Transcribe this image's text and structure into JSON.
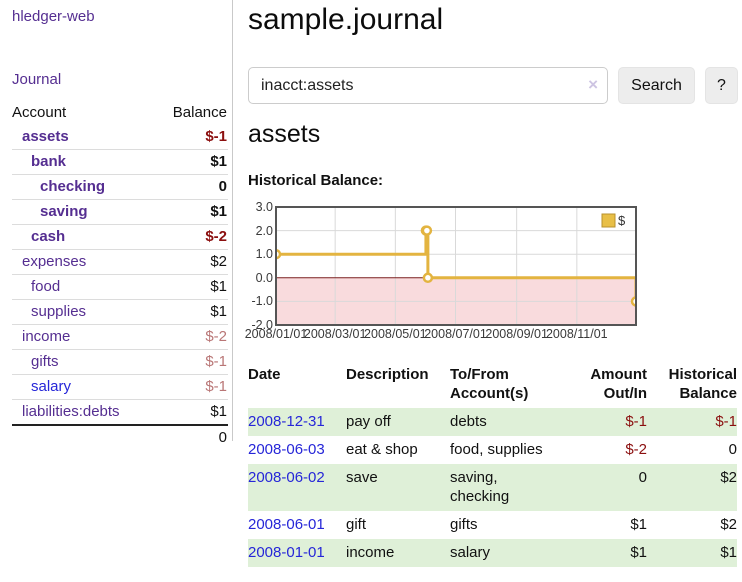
{
  "colors": {
    "link_purple": "#552e91",
    "link_blue": "#2626d8",
    "negative_strong": "#8b0f0f",
    "negative_soft": "#b97676",
    "row_stripe_green": "#dff0d8",
    "chart_line_gold": "#e3b440",
    "chart_negative_bg": "#f9dbdd",
    "chart_zero_line": "#7a1f1f"
  },
  "sidebar": {
    "brand": "hledger-web",
    "journal_link": "Journal",
    "accounts_table": {
      "col_account": "Account",
      "col_balance": "Balance",
      "rows": [
        {
          "name": "assets",
          "level": 0,
          "bold": true,
          "balance": "$-1",
          "neg": "strong"
        },
        {
          "name": "bank",
          "level": 1,
          "bold": true,
          "balance": "$1"
        },
        {
          "name": "checking",
          "level": 2,
          "bold": true,
          "balance": "0"
        },
        {
          "name": "saving",
          "level": 2,
          "bold": true,
          "balance": "$1"
        },
        {
          "name": "cash",
          "level": 1,
          "bold": true,
          "balance": "$-2",
          "neg": "strong"
        },
        {
          "name": "expenses",
          "level": 0,
          "bold": false,
          "balance": "$2"
        },
        {
          "name": "food",
          "level": 1,
          "bold": false,
          "balance": "$1"
        },
        {
          "name": "supplies",
          "level": 1,
          "bold": false,
          "balance": "$1"
        },
        {
          "name": "income",
          "level": 0,
          "bold": false,
          "balance": "$-2",
          "neg": "soft"
        },
        {
          "name": "gifts",
          "level": 1,
          "bold": false,
          "balance": "$-1",
          "neg": "soft"
        },
        {
          "name": "salary",
          "level": 1,
          "bold": false,
          "balance": "$-1",
          "neg": "soft",
          "blue": true
        },
        {
          "name": "liabilities:debts",
          "level": 0,
          "bold": false,
          "balance": "$1"
        }
      ],
      "total": "0"
    }
  },
  "header": {
    "title": "sample.journal"
  },
  "search": {
    "query": "inacct:assets",
    "clear_icon": "×",
    "search_button": "Search",
    "help_button": "?"
  },
  "register": {
    "account_title": "assets",
    "chart_label": "Historical Balance:",
    "table": {
      "headers": {
        "date": "Date",
        "sort_arrow": "∧",
        "description": "Description",
        "tofrom_l1": "To/From",
        "tofrom_l2": "Account(s)",
        "amount_l1": "Amount",
        "amount_l2": "Out/In",
        "hist_l1": "Historical",
        "hist_l2": "Balance"
      },
      "rows": [
        {
          "date": "2008-12-31",
          "description": "pay off",
          "tofrom": "debts",
          "amount": "$-1",
          "amount_neg": true,
          "hist": "$-1",
          "hist_neg": true
        },
        {
          "date": "2008-06-03",
          "description": "eat & shop",
          "tofrom": "food, supplies",
          "amount": "$-2",
          "amount_neg": true,
          "hist": "0",
          "hist_neg": false
        },
        {
          "date": "2008-06-02",
          "description": "save",
          "tofrom": "saving, checking",
          "amount": "0",
          "amount_neg": false,
          "hist": "$2",
          "hist_neg": false
        },
        {
          "date": "2008-06-01",
          "description": "gift",
          "tofrom": "gifts",
          "amount": "$1",
          "amount_neg": false,
          "hist": "$2",
          "hist_neg": false
        },
        {
          "date": "2008-01-01",
          "description": "income",
          "tofrom": "salary",
          "amount": "$1",
          "amount_neg": false,
          "hist": "$1",
          "hist_neg": false
        }
      ]
    }
  },
  "chart_data": {
    "type": "line",
    "title": "Historical Balance",
    "step": true,
    "series": [
      {
        "name": "$",
        "color": "#e3b440",
        "points": [
          {
            "date": "2008/01/01",
            "value": 1
          },
          {
            "date": "2008/06/01",
            "value": 2
          },
          {
            "date": "2008/06/02",
            "value": 2
          },
          {
            "date": "2008/06/03",
            "value": 0
          },
          {
            "date": "2008/12/31",
            "value": -1
          }
        ]
      }
    ],
    "ylim": [
      -2,
      3
    ],
    "y_ticks": [
      "3.0",
      "2.0",
      "1.0",
      "0.0",
      "-1.0",
      "-2.0"
    ],
    "x_range": [
      "2008/01/01",
      "2008/12/31"
    ],
    "x_ticks": [
      "2008/01/01",
      "2008/03/01",
      "2008/05/01",
      "2008/07/01",
      "2008/09/01",
      "2008/11/01"
    ],
    "grid": true,
    "legend": {
      "label": "$",
      "position": "top-right"
    }
  }
}
